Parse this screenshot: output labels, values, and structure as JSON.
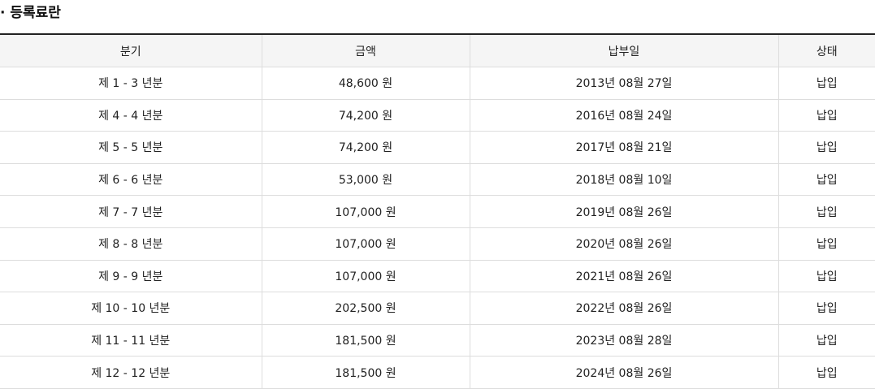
{
  "section": {
    "title": "· 등록료란"
  },
  "table": {
    "headers": [
      "분기",
      "금액",
      "납부일",
      "상태"
    ],
    "rows": [
      [
        "제 1 - 3 년분",
        "48,600 원",
        "2013년 08월 27일",
        "납입"
      ],
      [
        "제 4 - 4 년분",
        "74,200 원",
        "2016년 08월 24일",
        "납입"
      ],
      [
        "제 5 - 5 년분",
        "74,200 원",
        "2017년 08월 21일",
        "납입"
      ],
      [
        "제 6 - 6 년분",
        "53,000 원",
        "2018년 08월 10일",
        "납입"
      ],
      [
        "제 7 - 7 년분",
        "107,000 원",
        "2019년 08월 26일",
        "납입"
      ],
      [
        "제 8 - 8 년분",
        "107,000 원",
        "2020년 08월 26일",
        "납입"
      ],
      [
        "제 9 - 9 년분",
        "107,000 원",
        "2021년 08월 26일",
        "납입"
      ],
      [
        "제 10 - 10 년분",
        "202,500 원",
        "2022년 08월 26일",
        "납입"
      ],
      [
        "제 11 - 11 년분",
        "181,500 원",
        "2023년 08월 28일",
        "납입"
      ],
      [
        "제 12 - 12 년분",
        "181,500 원",
        "2024년 08월 26일",
        "납입"
      ]
    ]
  },
  "colors": {
    "header_bg": "#f5f5f5",
    "top_border": "#222222",
    "row_border": "#dddddd",
    "text": "#222222"
  }
}
